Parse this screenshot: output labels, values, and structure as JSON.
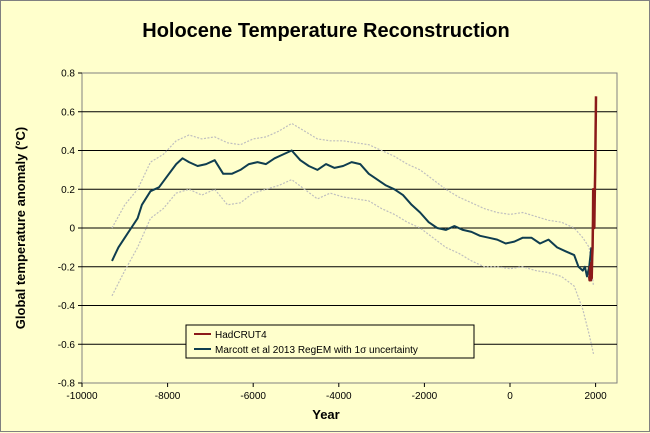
{
  "chart_data": {
    "type": "line",
    "title": "Holocene Temperature Reconstruction",
    "xlabel": "Year",
    "ylabel": "Global temperature anomaly (°C)",
    "xlim": [
      -10000,
      2500
    ],
    "ylim": [
      -0.8,
      0.8
    ],
    "xticks": [
      -10000,
      -8000,
      -6000,
      -4000,
      -2000,
      0,
      2000
    ],
    "yticks": [
      -0.8,
      -0.6,
      -0.4,
      -0.2,
      0,
      0.2,
      0.4,
      0.6,
      0.8
    ],
    "xtick_labels": [
      "-10000",
      "-8000",
      "-6000",
      "-4000",
      "-2000",
      "0",
      "2000"
    ],
    "ytick_labels": [
      "-0.8",
      "-0.6",
      "-0.4",
      "-0.2",
      "0",
      "0.2",
      "0.4",
      "0.6",
      "0.8"
    ],
    "grid": "horizontal",
    "legend_position": "bottom-left",
    "colors": {
      "background": "#FFFFCC",
      "gridline": "#000000",
      "hadcrut": "#8B1A1A",
      "marcott": "#0F3D4F",
      "uncertainty": "#BFBFBF"
    },
    "series": [
      {
        "name": "HadCRUT4",
        "color": "#8B1A1A",
        "x": [
          1850,
          1860,
          1870,
          1880,
          1890,
          1900,
          1910,
          1920,
          1930,
          1940,
          1945,
          1950,
          1960,
          1970,
          1980,
          1990,
          2000,
          2005,
          2010
        ],
        "y": [
          -0.25,
          -0.27,
          -0.2,
          -0.22,
          -0.27,
          -0.18,
          -0.26,
          -0.15,
          -0.1,
          0.05,
          0.2,
          0.02,
          0.0,
          0.0,
          0.15,
          0.3,
          0.5,
          0.58,
          0.68
        ]
      },
      {
        "name": "Marcott et al 2013 RegEM with 1σ uncertainty",
        "color": "#0F3D4F",
        "x": [
          -9300,
          -9150,
          -9000,
          -8850,
          -8700,
          -8600,
          -8400,
          -8200,
          -8000,
          -7800,
          -7650,
          -7500,
          -7300,
          -7100,
          -6900,
          -6700,
          -6500,
          -6300,
          -6100,
          -5900,
          -5700,
          -5500,
          -5300,
          -5100,
          -4900,
          -4700,
          -4500,
          -4300,
          -4100,
          -3900,
          -3700,
          -3500,
          -3300,
          -3100,
          -2900,
          -2700,
          -2500,
          -2300,
          -2100,
          -1900,
          -1700,
          -1500,
          -1300,
          -1100,
          -900,
          -700,
          -500,
          -300,
          -100,
          100,
          300,
          500,
          700,
          900,
          1100,
          1300,
          1500,
          1600,
          1700,
          1750,
          1800,
          1850,
          1900
        ],
        "y": [
          -0.17,
          -0.1,
          -0.05,
          0.0,
          0.05,
          0.12,
          0.19,
          0.21,
          0.27,
          0.33,
          0.36,
          0.34,
          0.32,
          0.33,
          0.35,
          0.28,
          0.28,
          0.3,
          0.33,
          0.34,
          0.33,
          0.36,
          0.38,
          0.4,
          0.35,
          0.32,
          0.3,
          0.33,
          0.31,
          0.32,
          0.34,
          0.33,
          0.28,
          0.25,
          0.22,
          0.2,
          0.17,
          0.12,
          0.08,
          0.03,
          0.0,
          -0.01,
          0.01,
          -0.01,
          -0.02,
          -0.04,
          -0.05,
          -0.06,
          -0.08,
          -0.07,
          -0.05,
          -0.05,
          -0.08,
          -0.06,
          -0.1,
          -0.12,
          -0.14,
          -0.2,
          -0.22,
          -0.2,
          -0.25,
          -0.2,
          -0.1
        ]
      }
    ],
    "uncertainty_band": {
      "name": "1σ uncertainty",
      "x": [
        -9300,
        -9000,
        -8700,
        -8400,
        -8100,
        -7800,
        -7500,
        -7200,
        -6900,
        -6600,
        -6300,
        -6000,
        -5700,
        -5400,
        -5100,
        -4800,
        -4500,
        -4200,
        -3900,
        -3600,
        -3300,
        -3000,
        -2700,
        -2400,
        -2100,
        -1800,
        -1500,
        -1200,
        -900,
        -600,
        -300,
        0,
        300,
        600,
        900,
        1200,
        1500,
        1700,
        1850,
        1950
      ],
      "upper": [
        0.0,
        0.12,
        0.2,
        0.34,
        0.38,
        0.45,
        0.48,
        0.46,
        0.47,
        0.44,
        0.43,
        0.46,
        0.47,
        0.5,
        0.54,
        0.5,
        0.46,
        0.45,
        0.45,
        0.44,
        0.43,
        0.4,
        0.37,
        0.33,
        0.3,
        0.25,
        0.2,
        0.16,
        0.13,
        0.1,
        0.08,
        0.07,
        0.08,
        0.06,
        0.04,
        0.03,
        0.0,
        -0.05,
        -0.1,
        -0.3
      ],
      "lower": [
        -0.35,
        -0.22,
        -0.1,
        0.05,
        0.1,
        0.18,
        0.2,
        0.17,
        0.2,
        0.12,
        0.13,
        0.18,
        0.2,
        0.22,
        0.25,
        0.2,
        0.15,
        0.18,
        0.16,
        0.15,
        0.14,
        0.1,
        0.07,
        0.03,
        0.0,
        -0.05,
        -0.1,
        -0.13,
        -0.17,
        -0.2,
        -0.2,
        -0.21,
        -0.2,
        -0.22,
        -0.23,
        -0.25,
        -0.3,
        -0.42,
        -0.55,
        -0.65
      ]
    }
  }
}
